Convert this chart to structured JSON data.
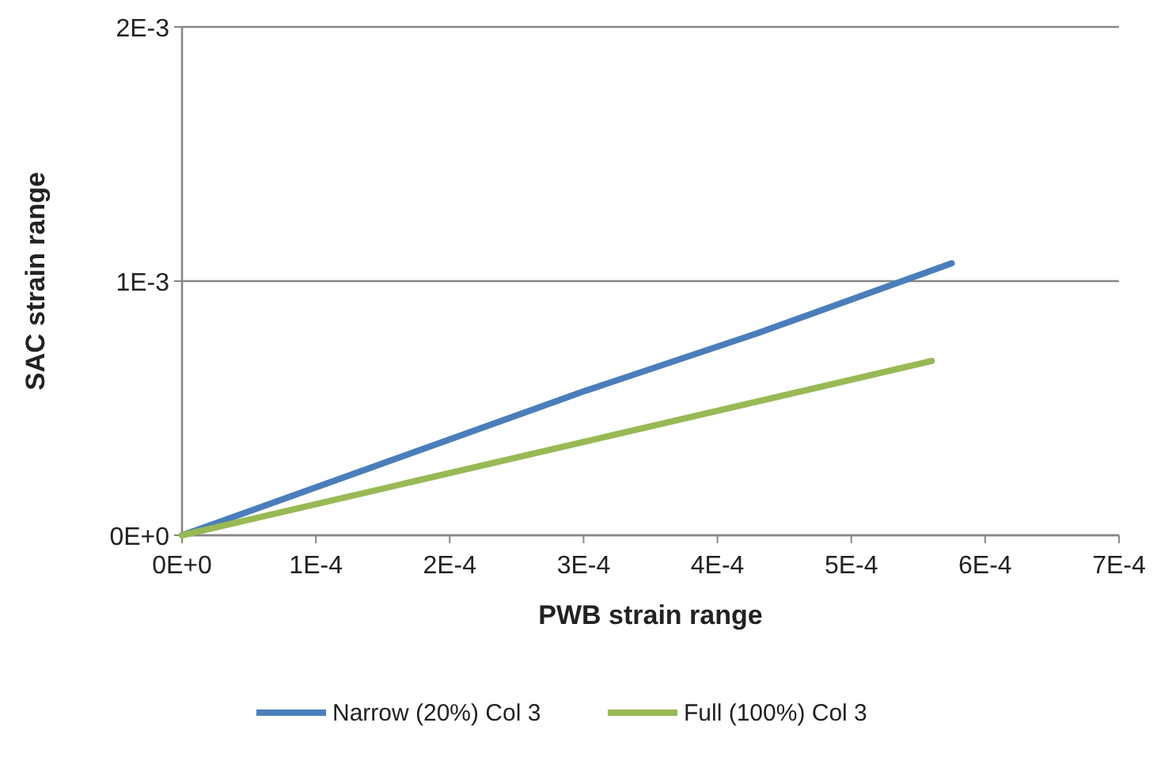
{
  "chart_data": {
    "type": "line",
    "xlabel": "PWB strain range",
    "ylabel": "SAC strain range",
    "xlim": [
      0,
      0.0007
    ],
    "xticks": [
      {
        "value": 0,
        "label": "0E+0"
      },
      {
        "value": 0.0001,
        "label": "1E-4"
      },
      {
        "value": 0.0002,
        "label": "2E-4"
      },
      {
        "value": 0.0003,
        "label": "3E-4"
      },
      {
        "value": 0.0004,
        "label": "4E-4"
      },
      {
        "value": 0.0005,
        "label": "5E-4"
      },
      {
        "value": 0.0006,
        "label": "6E-4"
      },
      {
        "value": 0.0007,
        "label": "7E-4"
      }
    ],
    "ylim": [
      0,
      0.002
    ],
    "yticks": [
      {
        "value": 0,
        "label": "0E+0"
      },
      {
        "value": 0.001,
        "label": "1E-3"
      },
      {
        "value": 0.002,
        "label": "2E-3"
      }
    ],
    "grid": "y",
    "legend": "bottom",
    "marker": "none",
    "line_style": "solid",
    "series": [
      {
        "name": "Narrow (20%) Col 3",
        "color": "#4a7ebb",
        "x": [
          0,
          0.0003,
          0.00043,
          0.000575
        ],
        "values": [
          0,
          0.000566,
          0.000795,
          0.00107
        ]
      },
      {
        "name": "Full (100%) Col 3",
        "color": "#98b954",
        "x": [
          0,
          0.0003,
          0.00056
        ],
        "values": [
          0,
          0.000367,
          0.000686
        ]
      }
    ]
  }
}
